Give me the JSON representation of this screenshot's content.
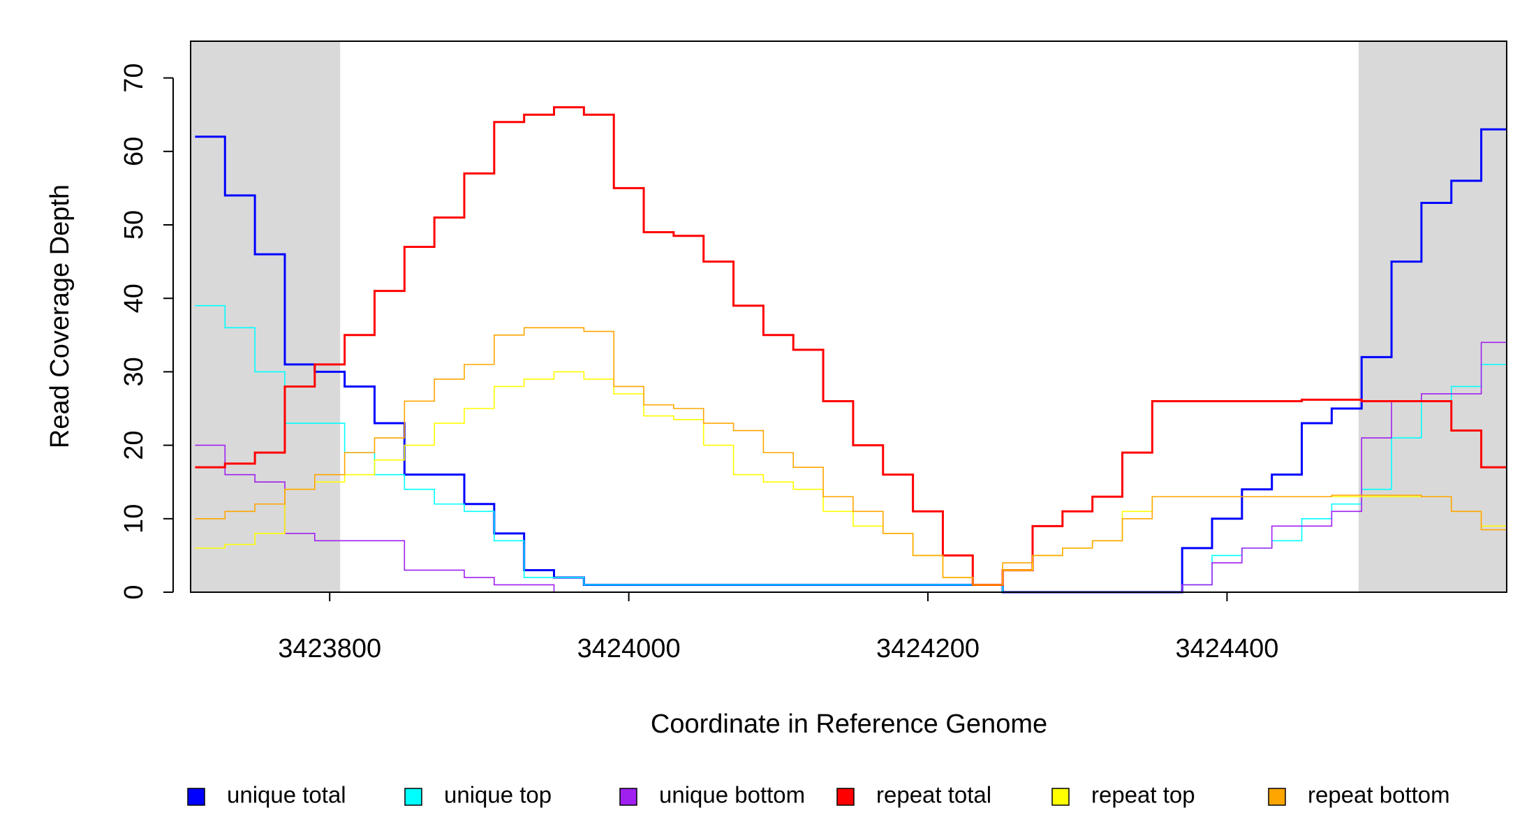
{
  "chart_data": {
    "type": "step",
    "xlabel": "Coordinate in Reference Genome",
    "ylabel": "Read Coverage Depth",
    "xlim": [
      3423707,
      3424587
    ],
    "ylim": [
      0,
      75
    ],
    "xticks": [
      3423800,
      3424000,
      3424200,
      3424400
    ],
    "yticks": [
      0,
      10,
      20,
      30,
      40,
      50,
      60,
      70
    ],
    "shaded_regions": [
      [
        3423707,
        3423807
      ],
      [
        3424488,
        3424587
      ]
    ],
    "legend": "bottom",
    "x": [
      3423710,
      3423730,
      3423750,
      3423770,
      3423790,
      3423810,
      3423830,
      3423850,
      3423870,
      3423890,
      3423910,
      3423930,
      3423950,
      3423970,
      3423990,
      3424010,
      3424030,
      3424050,
      3424070,
      3424090,
      3424110,
      3424130,
      3424150,
      3424170,
      3424190,
      3424210,
      3424230,
      3424250,
      3424270,
      3424290,
      3424310,
      3424330,
      3424350,
      3424370,
      3424390,
      3424410,
      3424430,
      3424450,
      3424470,
      3424490,
      3424510,
      3424530,
      3424550,
      3424570
    ],
    "series": [
      {
        "name": "unique total",
        "color": "#0000ff",
        "values": [
          62,
          54,
          46,
          31,
          30,
          28,
          23,
          16,
          16,
          12,
          8,
          3,
          2,
          1,
          1,
          1,
          1,
          1,
          1,
          1,
          1,
          1,
          1,
          1,
          1,
          1,
          1,
          0,
          0,
          0,
          0,
          0,
          0,
          6,
          10,
          14,
          16,
          23,
          25,
          32,
          45,
          53,
          56,
          63
        ]
      },
      {
        "name": "unique top",
        "color": "#00ffff",
        "values": [
          39,
          36,
          30,
          23,
          23,
          19,
          16,
          14,
          12,
          11,
          7,
          2,
          2,
          1,
          1,
          1,
          1,
          1,
          1,
          1,
          1,
          1,
          1,
          1,
          1,
          1,
          1,
          0,
          0,
          0,
          0,
          0,
          0,
          1,
          5,
          6,
          7,
          10,
          12,
          14,
          21,
          26,
          28,
          31
        ]
      },
      {
        "name": "unique bottom",
        "color": "#a020f0",
        "values": [
          20,
          16,
          15,
          8,
          7,
          7,
          7,
          3,
          3,
          2,
          1,
          1,
          0,
          0,
          0,
          0,
          0,
          0,
          0,
          0,
          0,
          0,
          0,
          0,
          0,
          0,
          0,
          0,
          0,
          0,
          0,
          0,
          0,
          1,
          4,
          6,
          9,
          9,
          11,
          21,
          26,
          27,
          27,
          34
        ]
      },
      {
        "name": "repeat total",
        "color": "#ff0000",
        "values": [
          17,
          17.5,
          19,
          28,
          31,
          35,
          41,
          47,
          51,
          57,
          64,
          65,
          66,
          65,
          55,
          49,
          48.5,
          45,
          39,
          35,
          33,
          26,
          20,
          16,
          11,
          5,
          1,
          3,
          9,
          11,
          13,
          19,
          26,
          26,
          26,
          26,
          26,
          26.2,
          26.2,
          26,
          26,
          26,
          22,
          17
        ]
      },
      {
        "name": "repeat top",
        "color": "#ffff00",
        "values": [
          6,
          6.5,
          8,
          14,
          15,
          16,
          18,
          20,
          23,
          25,
          28,
          29,
          30,
          29,
          27,
          24,
          23.5,
          20,
          16,
          15,
          14,
          11,
          9,
          8,
          5,
          2,
          1,
          3,
          5,
          6,
          7,
          11,
          13,
          13,
          13,
          13,
          13,
          13,
          13,
          13,
          13,
          13,
          11,
          9
        ]
      },
      {
        "name": "repeat bottom",
        "color": "#ffa500",
        "values": [
          10,
          11,
          12,
          14,
          16,
          19,
          21,
          26,
          29,
          31,
          35,
          36,
          36,
          35.5,
          28,
          25.5,
          25,
          23,
          22,
          19,
          17,
          13,
          11,
          8,
          5,
          2,
          1,
          4,
          5,
          6,
          7,
          10,
          13,
          13,
          13,
          13,
          13,
          13,
          13.2,
          13.2,
          13.2,
          13,
          11,
          8.5
        ]
      }
    ]
  }
}
